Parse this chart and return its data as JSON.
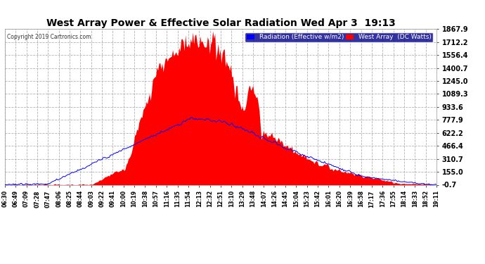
{
  "title": "West Array Power & Effective Solar Radiation Wed Apr 3  19:13",
  "copyright": "Copyright 2019 Cartronics.com",
  "legend_radiation": "Radiation (Effective w/m2)",
  "legend_west": "West Array  (DC Watts)",
  "y_ticks": [
    -0.7,
    155.0,
    310.7,
    466.4,
    622.2,
    777.9,
    933.6,
    1089.3,
    1245.0,
    1400.7,
    1556.4,
    1712.2,
    1867.9
  ],
  "y_min": -0.7,
  "y_max": 1867.9,
  "background_color": "#ffffff",
  "plot_bg_color": "#ffffff",
  "grid_color": "#aaaaaa",
  "title_color": "#000000",
  "radiation_color": "#0000ff",
  "west_array_color": "#ff0000",
  "x_tick_color": "#000000",
  "y_tick_color": "#000000",
  "x_labels": [
    "06:30",
    "06:49",
    "07:09",
    "07:28",
    "07:47",
    "08:06",
    "08:25",
    "08:44",
    "09:03",
    "09:22",
    "09:41",
    "10:00",
    "10:19",
    "10:38",
    "10:57",
    "11:16",
    "11:35",
    "11:54",
    "12:13",
    "12:32",
    "12:51",
    "13:10",
    "13:29",
    "13:48",
    "14:07",
    "14:26",
    "14:45",
    "15:04",
    "15:23",
    "15:42",
    "16:01",
    "16:20",
    "16:39",
    "16:58",
    "17:17",
    "17:36",
    "17:55",
    "18:14",
    "18:33",
    "18:52",
    "19:11"
  ]
}
